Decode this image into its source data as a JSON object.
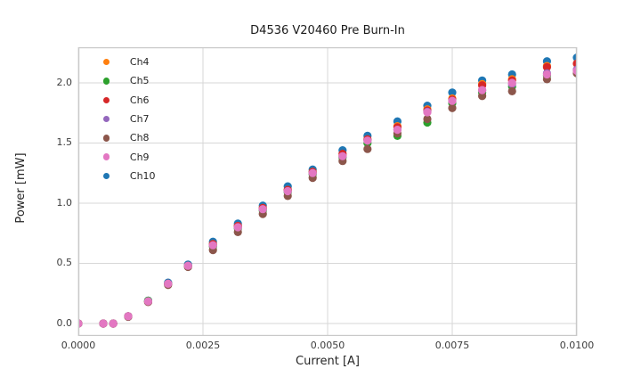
{
  "figure": {
    "background": "#ffffff"
  },
  "chart_data": {
    "type": "scatter",
    "title": "D4536 V20460 Pre Burn-In",
    "xlabel": "Current [A]",
    "ylabel": "Power [mW]",
    "xlim": [
      0.0,
      0.01
    ],
    "ylim": [
      -0.104,
      2.296
    ],
    "grid": true,
    "legend_position": "upper-left",
    "legend_frame": false,
    "xticks": [
      {
        "value": 0.0,
        "label": "0.0000"
      },
      {
        "value": 0.0025,
        "label": "0.0025"
      },
      {
        "value": 0.005,
        "label": "0.0050"
      },
      {
        "value": 0.0075,
        "label": "0.0075"
      },
      {
        "value": 0.01,
        "label": "0.0100"
      }
    ],
    "yticks": [
      {
        "value": 0.0,
        "label": "0.0"
      },
      {
        "value": 0.5,
        "label": "0.5"
      },
      {
        "value": 1.0,
        "label": "1.0"
      },
      {
        "value": 1.5,
        "label": "1.5"
      },
      {
        "value": 2.0,
        "label": "2.0"
      }
    ],
    "x": [
      0.0,
      0.0005,
      0.0007,
      0.001,
      0.0014,
      0.0018,
      0.0022,
      0.0027,
      0.0032,
      0.0037,
      0.0042,
      0.0047,
      0.0053,
      0.0058,
      0.0064,
      0.007,
      0.0075,
      0.0081,
      0.0087,
      0.0094,
      0.01
    ],
    "series": [
      {
        "name": "Ch4",
        "color": "#ff7f0e",
        "values": [
          0.0,
          0.0,
          0.0,
          0.06,
          0.18,
          0.33,
          0.48,
          0.66,
          0.81,
          0.96,
          1.11,
          1.26,
          1.4,
          1.53,
          1.64,
          1.78,
          1.87,
          1.99,
          2.03,
          2.14,
          2.16
        ]
      },
      {
        "name": "Ch5",
        "color": "#2ca02c",
        "values": [
          0.0,
          0.0,
          0.0,
          0.06,
          0.19,
          0.33,
          0.48,
          0.64,
          0.79,
          0.94,
          1.09,
          1.24,
          1.38,
          1.5,
          1.56,
          1.67,
          1.83,
          1.92,
          1.97,
          2.06,
          2.1
        ]
      },
      {
        "name": "Ch6",
        "color": "#d62728",
        "values": [
          0.0,
          0.0,
          0.0,
          0.06,
          0.18,
          0.33,
          0.48,
          0.66,
          0.81,
          0.96,
          1.11,
          1.26,
          1.41,
          1.53,
          1.63,
          1.77,
          1.86,
          1.98,
          2.02,
          2.13,
          2.16
        ]
      },
      {
        "name": "Ch7",
        "color": "#9467bd",
        "values": [
          0.0,
          0.0,
          0.0,
          0.06,
          0.18,
          0.33,
          0.48,
          0.65,
          0.8,
          0.95,
          1.1,
          1.25,
          1.39,
          1.52,
          1.61,
          1.76,
          1.85,
          1.94,
          1.99,
          2.08,
          2.11
        ]
      },
      {
        "name": "Ch8",
        "color": "#8c564b",
        "values": [
          0.0,
          0.0,
          0.0,
          0.055,
          0.18,
          0.32,
          0.47,
          0.61,
          0.76,
          0.91,
          1.06,
          1.21,
          1.35,
          1.45,
          1.58,
          1.7,
          1.79,
          1.89,
          1.93,
          2.03,
          2.08
        ]
      },
      {
        "name": "Ch9",
        "color": "#e377c2",
        "values": [
          0.0,
          0.0,
          0.0,
          0.06,
          0.185,
          0.33,
          0.48,
          0.65,
          0.8,
          0.95,
          1.1,
          1.25,
          1.39,
          1.52,
          1.61,
          1.755,
          1.85,
          1.94,
          2.0,
          2.07,
          2.1
        ]
      },
      {
        "name": "Ch10",
        "color": "#1f77b4",
        "values": [
          0.0,
          0.0,
          0.0,
          0.06,
          0.19,
          0.34,
          0.49,
          0.68,
          0.83,
          0.98,
          1.14,
          1.28,
          1.44,
          1.56,
          1.68,
          1.81,
          1.92,
          2.02,
          2.07,
          2.18,
          2.21
        ]
      }
    ],
    "draw_order": [
      "Ch10",
      "Ch4",
      "Ch5",
      "Ch6",
      "Ch7",
      "Ch8",
      "Ch9"
    ],
    "marker": {
      "shape": "circle",
      "radius_px": 4.6
    },
    "colors": {
      "grid": "#d7d7d7",
      "spine": "#c9c9c9",
      "tick_text": "#3d3d3d",
      "label_text": "#262626",
      "title_text": "#1a1a1a"
    }
  }
}
